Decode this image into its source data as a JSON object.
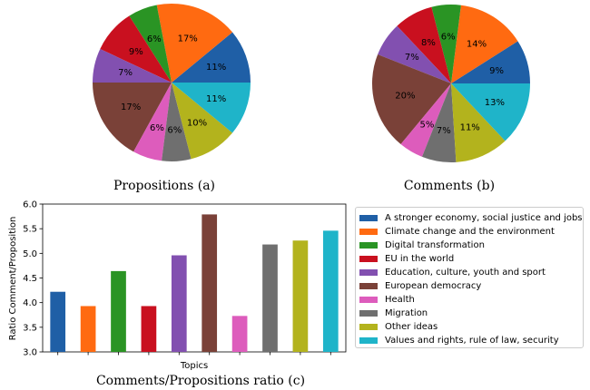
{
  "colors": [
    "#1f5fa6",
    "#ff6a11",
    "#2a9424",
    "#c9101f",
    "#8250b0",
    "#7a4138",
    "#dd5cbc",
    "#6f6f6f",
    "#b3b31d",
    "#1fb4c9"
  ],
  "chart_data": [
    {
      "type": "pie",
      "title": "Propositions (a)",
      "labels": [
        "11%",
        "17%",
        "6%",
        "9%",
        "7%",
        "17%",
        "6%",
        "6%",
        "10%",
        "11%"
      ],
      "values": [
        11,
        17,
        6,
        9,
        7,
        17,
        6,
        6,
        10,
        11
      ],
      "startangle": 0,
      "direction": "counterclockwise"
    },
    {
      "type": "pie",
      "title": "Comments (b)",
      "labels": [
        "9%",
        "14%",
        "6%",
        "8%",
        "7%",
        "20%",
        "5%",
        "7%",
        "11%",
        "13%"
      ],
      "values": [
        9,
        14,
        6,
        8,
        7,
        20,
        5,
        7,
        11,
        13
      ],
      "startangle": 0,
      "direction": "counterclockwise"
    },
    {
      "type": "bar",
      "title": "Comments/Propositions ratio (c)",
      "xlabel": "Topics",
      "ylabel": "Ratio Comment/Proposition",
      "ylim": [
        3.0,
        6.0
      ],
      "yticks": [
        "3.0",
        "3.5",
        "4.0",
        "4.5",
        "5.0",
        "5.5",
        "6.0"
      ],
      "yticks_values": [
        3.0,
        3.5,
        4.0,
        4.5,
        5.0,
        5.5,
        6.0
      ],
      "values": [
        4.22,
        3.93,
        4.64,
        3.93,
        4.96,
        5.79,
        3.73,
        5.18,
        5.26,
        5.46
      ],
      "legend_placement": "right",
      "legend": [
        "A stronger economy, social justice and jobs",
        "Climate change and the environment",
        "Digital transformation",
        "EU in the world",
        "Education, culture, youth and sport",
        "European democracy",
        "Health",
        "Migration",
        "Other ideas",
        "Values and rights, rule of law, security"
      ]
    }
  ]
}
